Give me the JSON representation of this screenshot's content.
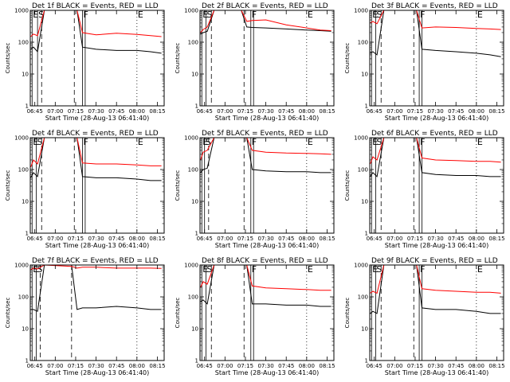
{
  "figure": {
    "ylabel": "Counts/sec",
    "xlabel": "Start Time (28-Aug-13 06:41:40)",
    "x_ticks": [
      "06:45",
      "07:00",
      "07:15",
      "07:30",
      "07:45",
      "08:00",
      "08:15"
    ],
    "y_ticks": [
      "1",
      "10",
      "100",
      "1000"
    ],
    "colors": {
      "events": "#000000",
      "lld": "#ff0000",
      "axes": "#000000"
    }
  },
  "chart_data": [
    {
      "type": "line",
      "title": "Det 1f BLACK = Events, RED = LLD",
      "x_range": [
        "06:41:40",
        "08:20:00"
      ],
      "ylim": [
        1,
        1000
      ],
      "yscale": "log",
      "markers": [
        {
          "label": "E",
          "time": "06:43",
          "style": "solid"
        },
        {
          "label": "S",
          "time": "06:47",
          "style": "solid"
        },
        {
          "label": "",
          "time": "06:50",
          "style": "dashed"
        },
        {
          "label": "",
          "time": "07:14",
          "style": "dashed"
        },
        {
          "label": "F",
          "time": "07:20",
          "style": "solid"
        },
        {
          "label": "",
          "time": "07:22",
          "style": "solid"
        },
        {
          "label": "E",
          "time": "08:00",
          "style": "dotted"
        }
      ],
      "series": [
        {
          "name": "Events",
          "x": [
            "06:42",
            "06:44",
            "06:47",
            "06:52",
            "07:12",
            "07:16",
            "07:20",
            "07:30",
            "07:45",
            "08:00",
            "08:10",
            "08:18"
          ],
          "y": [
            60,
            70,
            50,
            1000,
            1000,
            1000,
            70,
            60,
            55,
            55,
            50,
            45
          ]
        },
        {
          "name": "LLD",
          "x": [
            "06:42",
            "06:44",
            "06:47",
            "06:52",
            "07:12",
            "07:16",
            "07:20",
            "07:30",
            "07:45",
            "08:00",
            "08:10",
            "08:18"
          ],
          "y": [
            150,
            180,
            160,
            1000,
            1000,
            1000,
            200,
            170,
            190,
            175,
            160,
            150
          ]
        }
      ]
    },
    {
      "type": "line",
      "title": "Det 2f BLACK = Events, RED = LLD",
      "x_range": [
        "06:41:40",
        "08:20:00"
      ],
      "ylim": [
        1,
        1000
      ],
      "yscale": "log",
      "markers": [
        {
          "label": "E",
          "time": "06:43",
          "style": "solid"
        },
        {
          "label": "S",
          "time": "06:46",
          "style": "solid"
        },
        {
          "label": "",
          "time": "06:50",
          "style": "dashed"
        },
        {
          "label": "",
          "time": "07:14",
          "style": "dashed"
        },
        {
          "label": "F",
          "time": "07:19",
          "style": "solid"
        },
        {
          "label": "",
          "time": "07:21",
          "style": "solid"
        },
        {
          "label": "E",
          "time": "08:00",
          "style": "dotted"
        }
      ],
      "series": [
        {
          "name": "Events",
          "x": [
            "06:42",
            "06:44",
            "06:47",
            "06:52",
            "07:12",
            "07:16",
            "07:20",
            "07:30",
            "07:45",
            "08:00",
            "08:10",
            "08:18"
          ],
          "y": [
            180,
            200,
            220,
            1000,
            1000,
            300,
            290,
            280,
            260,
            240,
            230,
            220
          ]
        },
        {
          "name": "LLD",
          "x": [
            "06:42",
            "06:44",
            "06:47",
            "06:52",
            "07:12",
            "07:16",
            "07:20",
            "07:30",
            "07:45",
            "08:00",
            "08:10",
            "08:18"
          ],
          "y": [
            200,
            250,
            300,
            1000,
            1000,
            450,
            480,
            500,
            350,
            280,
            240,
            230
          ]
        }
      ]
    },
    {
      "type": "line",
      "title": "Det 3f BLACK = Events, RED = LLD",
      "x_range": [
        "06:41:40",
        "08:20:00"
      ],
      "ylim": [
        1,
        1000
      ],
      "yscale": "log",
      "markers": [
        {
          "label": "E",
          "time": "06:43",
          "style": "solid"
        },
        {
          "label": "S",
          "time": "06:46",
          "style": "solid"
        },
        {
          "label": "",
          "time": "06:50",
          "style": "dashed"
        },
        {
          "label": "",
          "time": "07:14",
          "style": "dashed"
        },
        {
          "label": "F",
          "time": "07:18",
          "style": "solid"
        },
        {
          "label": "",
          "time": "07:20",
          "style": "solid"
        },
        {
          "label": "E",
          "time": "08:00",
          "style": "dotted"
        }
      ],
      "series": [
        {
          "name": "Events",
          "x": [
            "06:42",
            "06:44",
            "06:47",
            "06:52",
            "07:12",
            "07:16",
            "07:20",
            "07:30",
            "07:45",
            "08:00",
            "08:10",
            "08:18"
          ],
          "y": [
            45,
            50,
            40,
            1000,
            1000,
            1000,
            60,
            55,
            50,
            45,
            40,
            35
          ]
        },
        {
          "name": "LLD",
          "x": [
            "06:42",
            "06:44",
            "06:47",
            "06:52",
            "07:12",
            "07:16",
            "07:20",
            "07:30",
            "07:45",
            "08:00",
            "08:10",
            "08:18"
          ],
          "y": [
            400,
            450,
            380,
            1000,
            1000,
            1000,
            280,
            300,
            290,
            270,
            260,
            250
          ]
        }
      ]
    },
    {
      "type": "line",
      "title": "Det 4f BLACK = Events, RED = LLD",
      "x_range": [
        "06:41:40",
        "08:20:00"
      ],
      "ylim": [
        1,
        1000
      ],
      "yscale": "log",
      "markers": [
        {
          "label": "E",
          "time": "06:43",
          "style": "solid"
        },
        {
          "label": "S",
          "time": "06:46",
          "style": "solid"
        },
        {
          "label": "",
          "time": "06:50",
          "style": "dashed"
        },
        {
          "label": "",
          "time": "07:14",
          "style": "dashed"
        },
        {
          "label": "F",
          "time": "07:20",
          "style": "solid"
        },
        {
          "label": "",
          "time": "07:22",
          "style": "solid"
        },
        {
          "label": "E",
          "time": "08:00",
          "style": "dotted"
        }
      ],
      "series": [
        {
          "name": "Events",
          "x": [
            "06:42",
            "06:44",
            "06:47",
            "06:52",
            "07:12",
            "07:16",
            "07:20",
            "07:30",
            "07:45",
            "08:00",
            "08:10",
            "08:18"
          ],
          "y": [
            55,
            80,
            60,
            1000,
            1000,
            1000,
            60,
            55,
            55,
            50,
            45,
            45
          ]
        },
        {
          "name": "LLD",
          "x": [
            "06:42",
            "06:44",
            "06:47",
            "06:52",
            "07:12",
            "07:16",
            "07:20",
            "07:30",
            "07:45",
            "08:00",
            "08:10",
            "08:18"
          ],
          "y": [
            120,
            200,
            150,
            1000,
            1000,
            1000,
            160,
            150,
            150,
            140,
            130,
            130
          ]
        }
      ]
    },
    {
      "type": "line",
      "title": "Det 5f BLACK = Events, RED = LLD",
      "x_range": [
        "06:41:40",
        "08:20:00"
      ],
      "ylim": [
        1,
        1000
      ],
      "yscale": "log",
      "markers": [
        {
          "label": "E",
          "time": "06:43",
          "style": "solid"
        },
        {
          "label": "S",
          "time": "06:45",
          "style": "solid"
        },
        {
          "label": "",
          "time": "06:48",
          "style": "dashed"
        },
        {
          "label": "",
          "time": "07:14",
          "style": "dashed"
        },
        {
          "label": "F",
          "time": "07:19",
          "style": "solid"
        },
        {
          "label": "",
          "time": "07:21",
          "style": "solid"
        },
        {
          "label": "E",
          "time": "08:00",
          "style": "dotted"
        }
      ],
      "series": [
        {
          "name": "Events",
          "x": [
            "06:42",
            "06:44",
            "06:47",
            "06:52",
            "07:12",
            "07:16",
            "07:20",
            "07:30",
            "07:45",
            "08:00",
            "08:10",
            "08:18"
          ],
          "y": [
            80,
            100,
            110,
            1000,
            1000,
            1000,
            100,
            90,
            85,
            85,
            80,
            80
          ]
        },
        {
          "name": "LLD",
          "x": [
            "06:42",
            "06:44",
            "06:47",
            "06:52",
            "07:12",
            "07:16",
            "07:20",
            "07:30",
            "07:45",
            "08:00",
            "08:10",
            "08:18"
          ],
          "y": [
            200,
            350,
            400,
            1000,
            1000,
            1000,
            400,
            350,
            330,
            320,
            310,
            300
          ]
        }
      ]
    },
    {
      "type": "line",
      "title": "Det 6f BLACK = Events, RED = LLD",
      "x_range": [
        "06:41:40",
        "08:20:00"
      ],
      "ylim": [
        1,
        1000
      ],
      "yscale": "log",
      "markers": [
        {
          "label": "E",
          "time": "06:43",
          "style": "solid"
        },
        {
          "label": "S",
          "time": "06:46",
          "style": "solid"
        },
        {
          "label": "",
          "time": "06:50",
          "style": "dashed"
        },
        {
          "label": "",
          "time": "07:14",
          "style": "dashed"
        },
        {
          "label": "F",
          "time": "07:18",
          "style": "solid"
        },
        {
          "label": "",
          "time": "07:20",
          "style": "solid"
        },
        {
          "label": "E",
          "time": "08:00",
          "style": "dotted"
        }
      ],
      "series": [
        {
          "name": "Events",
          "x": [
            "06:42",
            "06:44",
            "06:47",
            "06:52",
            "07:12",
            "07:16",
            "07:20",
            "07:30",
            "07:45",
            "08:00",
            "08:10",
            "08:18"
          ],
          "y": [
            60,
            80,
            60,
            1000,
            1000,
            1000,
            80,
            70,
            65,
            65,
            60,
            60
          ]
        },
        {
          "name": "LLD",
          "x": [
            "06:42",
            "06:44",
            "06:47",
            "06:52",
            "07:12",
            "07:16",
            "07:20",
            "07:30",
            "07:45",
            "08:00",
            "08:10",
            "08:18"
          ],
          "y": [
            150,
            250,
            200,
            1000,
            1000,
            1000,
            230,
            200,
            190,
            180,
            180,
            170
          ]
        }
      ]
    },
    {
      "type": "line",
      "title": "Det 7f BLACK = Events, RED = LLD",
      "x_range": [
        "06:41:40",
        "08:20:00"
      ],
      "ylim": [
        1,
        1000
      ],
      "yscale": "log",
      "markers": [
        {
          "label": "E",
          "time": "06:43",
          "style": "solid"
        },
        {
          "label": "S",
          "time": "06:46",
          "style": "solid"
        },
        {
          "label": "",
          "time": "06:49",
          "style": "dashed"
        },
        {
          "label": "",
          "time": "07:12",
          "style": "dashed"
        },
        {
          "label": "",
          "time": "08:00",
          "style": "dotted"
        }
      ],
      "series": [
        {
          "name": "Events",
          "x": [
            "06:42",
            "06:44",
            "06:47",
            "06:52",
            "07:12",
            "07:16",
            "07:20",
            "07:30",
            "07:45",
            "08:00",
            "08:10",
            "08:18"
          ],
          "y": [
            40,
            40,
            35,
            1000,
            1000,
            40,
            45,
            45,
            50,
            45,
            40,
            40
          ]
        },
        {
          "name": "LLD",
          "x": [
            "06:42",
            "06:44",
            "06:47",
            "06:52",
            "07:12",
            "07:16",
            "07:20",
            "07:30",
            "07:45",
            "08:00",
            "08:10",
            "08:18"
          ],
          "y": [
            700,
            800,
            750,
            1000,
            900,
            800,
            850,
            850,
            800,
            800,
            800,
            780
          ]
        }
      ]
    },
    {
      "type": "line",
      "title": "Det 8f BLACK = Events, RED = LLD",
      "x_range": [
        "06:41:40",
        "08:20:00"
      ],
      "ylim": [
        1,
        1000
      ],
      "yscale": "log",
      "markers": [
        {
          "label": "E",
          "time": "06:43",
          "style": "solid"
        },
        {
          "label": "S",
          "time": "06:46",
          "style": "solid"
        },
        {
          "label": "",
          "time": "06:50",
          "style": "dashed"
        },
        {
          "label": "",
          "time": "07:14",
          "style": "dashed"
        },
        {
          "label": "F",
          "time": "07:19",
          "style": "solid"
        },
        {
          "label": "",
          "time": "07:21",
          "style": "solid"
        },
        {
          "label": "E",
          "time": "08:00",
          "style": "dotted"
        }
      ],
      "series": [
        {
          "name": "Events",
          "x": [
            "06:42",
            "06:44",
            "06:47",
            "06:52",
            "07:12",
            "07:16",
            "07:20",
            "07:30",
            "07:45",
            "08:00",
            "08:10",
            "08:18"
          ],
          "y": [
            70,
            80,
            60,
            1000,
            1000,
            1000,
            60,
            60,
            55,
            55,
            50,
            50
          ]
        },
        {
          "name": "LLD",
          "x": [
            "06:42",
            "06:44",
            "06:47",
            "06:52",
            "07:12",
            "07:16",
            "07:20",
            "07:30",
            "07:45",
            "08:00",
            "08:10",
            "08:18"
          ],
          "y": [
            200,
            300,
            250,
            1000,
            1000,
            1000,
            220,
            190,
            180,
            170,
            160,
            160
          ]
        }
      ]
    },
    {
      "type": "line",
      "title": "Det 9f BLACK = Events, RED = LLD",
      "x_range": [
        "06:41:40",
        "08:20:00"
      ],
      "ylim": [
        1,
        1000
      ],
      "yscale": "log",
      "markers": [
        {
          "label": "E",
          "time": "06:43",
          "style": "solid"
        },
        {
          "label": "S",
          "time": "06:46",
          "style": "solid"
        },
        {
          "label": "",
          "time": "06:50",
          "style": "dashed"
        },
        {
          "label": "",
          "time": "07:14",
          "style": "dashed"
        },
        {
          "label": "F",
          "time": "07:18",
          "style": "solid"
        },
        {
          "label": "",
          "time": "07:20",
          "style": "solid"
        },
        {
          "label": "E",
          "time": "08:00",
          "style": "dotted"
        }
      ],
      "series": [
        {
          "name": "Events",
          "x": [
            "06:42",
            "06:44",
            "06:47",
            "06:52",
            "07:12",
            "07:16",
            "07:20",
            "07:30",
            "07:45",
            "08:00",
            "08:10",
            "08:18"
          ],
          "y": [
            30,
            35,
            30,
            1000,
            1000,
            1000,
            45,
            40,
            40,
            35,
            30,
            30
          ]
        },
        {
          "name": "LLD",
          "x": [
            "06:42",
            "06:44",
            "06:47",
            "06:52",
            "07:12",
            "07:16",
            "07:20",
            "07:30",
            "07:45",
            "08:00",
            "08:10",
            "08:18"
          ],
          "y": [
            130,
            150,
            130,
            1000,
            1000,
            1000,
            180,
            160,
            150,
            140,
            140,
            130
          ]
        }
      ]
    }
  ]
}
